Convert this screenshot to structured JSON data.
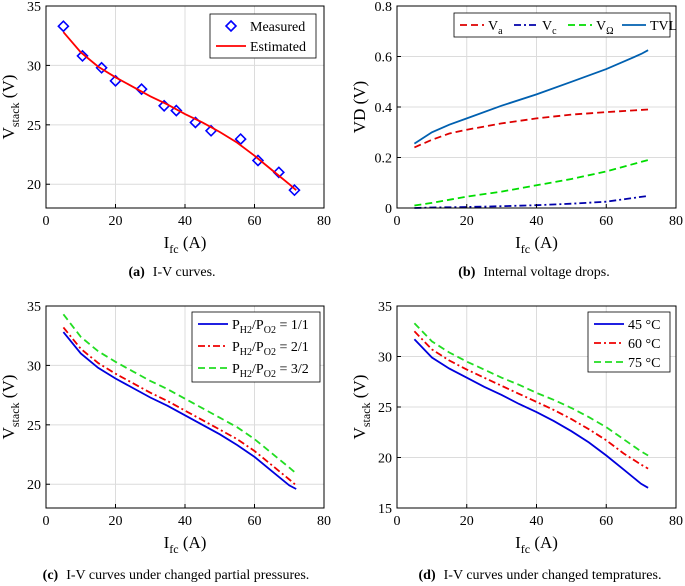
{
  "chart_data": [
    {
      "type": "scatter+line",
      "caption_tag": "(a)",
      "caption": "I-V curves.",
      "xlabel": {
        "main": "I",
        "sub": "fc",
        "unit": " (A)"
      },
      "ylabel": {
        "main": "V",
        "sub": "stack",
        "unit": " (V)"
      },
      "xlim": [
        0,
        80
      ],
      "ylim": [
        18,
        35
      ],
      "xticks": [
        0,
        20,
        40,
        60,
        80
      ],
      "yticks": [
        20,
        25,
        30,
        35
      ],
      "grid": true,
      "legend": "top-right",
      "series": [
        {
          "name": "Measured",
          "name_main": "Measured",
          "name_sub": "",
          "name_tail": "",
          "kind": "marker",
          "marker": "diamond",
          "color": "#0000ff",
          "x": [
            5,
            10.5,
            16,
            20,
            27.5,
            34,
            37.5,
            43,
            47.5,
            56,
            61,
            67,
            71.5
          ],
          "y": [
            33.3,
            30.8,
            29.8,
            28.7,
            28.0,
            26.6,
            26.2,
            25.2,
            24.5,
            23.8,
            22.0,
            21.0,
            19.5
          ]
        },
        {
          "name": "Estimated",
          "name_main": "Estimated",
          "name_sub": "",
          "name_tail": "",
          "kind": "line",
          "dash": "",
          "color": "#ff0000",
          "x": [
            5,
            10,
            15,
            20,
            25,
            30,
            35,
            40,
            45,
            50,
            55,
            60,
            65,
            70,
            72
          ],
          "y": [
            32.8,
            31.1,
            29.9,
            29.0,
            28.2,
            27.4,
            26.7,
            25.9,
            25.2,
            24.4,
            23.5,
            22.4,
            21.2,
            20.0,
            19.5
          ]
        }
      ]
    },
    {
      "type": "line",
      "caption_tag": "(b)",
      "caption": "Internal voltage drops.",
      "xlabel": {
        "main": "I",
        "sub": "fc",
        "unit": " (A)"
      },
      "ylabel": {
        "main": "VD",
        "sub": "",
        "unit": " (V)"
      },
      "xlim": [
        0,
        80
      ],
      "ylim": [
        0,
        0.8
      ],
      "xticks": [
        0,
        20,
        40,
        60,
        80
      ],
      "yticks": [
        0,
        0.2,
        0.4,
        0.6,
        0.8
      ],
      "grid": true,
      "legend": "top",
      "series": [
        {
          "name": "Va",
          "name_main": "V",
          "name_sub": "a",
          "name_tail": "",
          "kind": "line",
          "dash": "7,4",
          "color": "#dd0000",
          "x": [
            5,
            10,
            15,
            20,
            30,
            40,
            50,
            60,
            72
          ],
          "y": [
            0.24,
            0.27,
            0.295,
            0.31,
            0.335,
            0.355,
            0.37,
            0.38,
            0.39
          ]
        },
        {
          "name": "Vc",
          "name_main": "V",
          "name_sub": "c",
          "name_tail": "",
          "kind": "line",
          "dash": "7,3,2,3",
          "color": "#0000aa",
          "x": [
            5,
            10,
            20,
            30,
            40,
            50,
            60,
            72
          ],
          "y": [
            0.0,
            0.002,
            0.004,
            0.007,
            0.011,
            0.017,
            0.025,
            0.048
          ]
        },
        {
          "name": "VΩ",
          "name_main": "V",
          "name_sub": "Ω",
          "name_tail": "",
          "kind": "line",
          "dash": "7,4",
          "color": "#00dd00",
          "x": [
            5,
            10,
            20,
            30,
            40,
            50,
            60,
            72
          ],
          "y": [
            0.01,
            0.02,
            0.045,
            0.065,
            0.09,
            0.115,
            0.145,
            0.19
          ]
        },
        {
          "name": "TVL",
          "name_main": "TVL",
          "name_sub": "",
          "name_tail": "",
          "kind": "line",
          "dash": "",
          "color": "#0060b0",
          "x": [
            5,
            10,
            15,
            20,
            30,
            40,
            50,
            60,
            65,
            70,
            72
          ],
          "y": [
            0.255,
            0.3,
            0.33,
            0.355,
            0.405,
            0.45,
            0.5,
            0.55,
            0.58,
            0.61,
            0.625
          ]
        }
      ]
    },
    {
      "type": "line",
      "caption_tag": "(c)",
      "caption": "I-V curves under changed partial pressures.",
      "xlabel": {
        "main": "I",
        "sub": "fc",
        "unit": " (A)"
      },
      "ylabel": {
        "main": "V",
        "sub": "stack",
        "unit": " (V)"
      },
      "xlim": [
        0,
        80
      ],
      "ylim": [
        18,
        35
      ],
      "xticks": [
        0,
        20,
        40,
        60,
        80
      ],
      "yticks": [
        20,
        25,
        30,
        35
      ],
      "grid": true,
      "legend": "top-right",
      "series": [
        {
          "name": "PH2/PO2 = 1/1",
          "name_main": "P",
          "name_sub": "H2",
          "name_tail": "/P|O2| = 1/1",
          "kind": "line",
          "dash": "",
          "color": "#0000dd",
          "x": [
            5,
            10,
            15,
            20,
            25,
            30,
            35,
            40,
            45,
            50,
            55,
            60,
            65,
            70,
            72
          ],
          "y": [
            32.8,
            31.0,
            29.8,
            28.9,
            28.1,
            27.3,
            26.6,
            25.8,
            25.0,
            24.2,
            23.3,
            22.3,
            21.1,
            19.9,
            19.6
          ]
        },
        {
          "name": "PH2/PO2 = 2/1",
          "name_main": "P",
          "name_sub": "H2",
          "name_tail": "/P|O2| = 2/1",
          "kind": "line",
          "dash": "7,3,2,3",
          "color": "#ee0000",
          "x": [
            5,
            10,
            15,
            20,
            25,
            30,
            35,
            40,
            45,
            50,
            55,
            60,
            65,
            70,
            72
          ],
          "y": [
            33.2,
            31.4,
            30.2,
            29.3,
            28.5,
            27.7,
            27.0,
            26.2,
            25.4,
            24.6,
            23.8,
            22.8,
            21.6,
            20.4,
            19.9
          ]
        },
        {
          "name": "PH2/PO2 = 3/2",
          "name_main": "P",
          "name_sub": "H2",
          "name_tail": "/P|O2| = 3/2",
          "kind": "line",
          "dash": "7,4",
          "color": "#22dd22",
          "x": [
            5,
            10,
            15,
            20,
            25,
            30,
            35,
            40,
            45,
            50,
            55,
            60,
            65,
            70,
            72
          ],
          "y": [
            34.3,
            32.4,
            31.2,
            30.3,
            29.5,
            28.7,
            28.0,
            27.2,
            26.4,
            25.6,
            24.8,
            23.8,
            22.6,
            21.4,
            20.9
          ]
        }
      ]
    },
    {
      "type": "line",
      "caption_tag": "(d)",
      "caption": "I-V curves under changed tempratures.",
      "xlabel": {
        "main": "I",
        "sub": "fc",
        "unit": " (A)"
      },
      "ylabel": {
        "main": "V",
        "sub": "stack",
        "unit": " (V)"
      },
      "xlim": [
        0,
        80
      ],
      "ylim": [
        15,
        35
      ],
      "xticks": [
        0,
        20,
        40,
        60,
        80
      ],
      "yticks": [
        15,
        20,
        25,
        30,
        35
      ],
      "grid": true,
      "legend": "top-right",
      "series": [
        {
          "name": "45 °C",
          "name_main": "45 °C",
          "name_sub": "",
          "name_tail": "",
          "kind": "line",
          "dash": "",
          "color": "#0000dd",
          "x": [
            5,
            10,
            15,
            20,
            25,
            30,
            35,
            40,
            45,
            50,
            55,
            60,
            65,
            70,
            72
          ],
          "y": [
            31.7,
            29.9,
            28.8,
            27.9,
            27.0,
            26.2,
            25.3,
            24.5,
            23.6,
            22.6,
            21.5,
            20.2,
            18.8,
            17.4,
            17.0
          ]
        },
        {
          "name": "60 °C",
          "name_main": "60 °C",
          "name_sub": "",
          "name_tail": "",
          "kind": "line",
          "dash": "7,3,2,3",
          "color": "#ee0000",
          "x": [
            5,
            10,
            15,
            20,
            25,
            30,
            35,
            40,
            45,
            50,
            55,
            60,
            65,
            70,
            72
          ],
          "y": [
            32.5,
            30.7,
            29.6,
            28.7,
            27.9,
            27.1,
            26.3,
            25.5,
            24.7,
            23.8,
            22.8,
            21.7,
            20.4,
            19.3,
            18.9
          ]
        },
        {
          "name": "75 °C",
          "name_main": "75 °C",
          "name_sub": "",
          "name_tail": "",
          "kind": "line",
          "dash": "7,4",
          "color": "#22dd22",
          "x": [
            5,
            10,
            15,
            20,
            25,
            30,
            35,
            40,
            45,
            50,
            55,
            60,
            65,
            70,
            72
          ],
          "y": [
            33.3,
            31.5,
            30.4,
            29.5,
            28.7,
            27.9,
            27.2,
            26.4,
            25.7,
            24.9,
            24.0,
            23.0,
            21.8,
            20.6,
            20.2
          ]
        }
      ]
    }
  ]
}
